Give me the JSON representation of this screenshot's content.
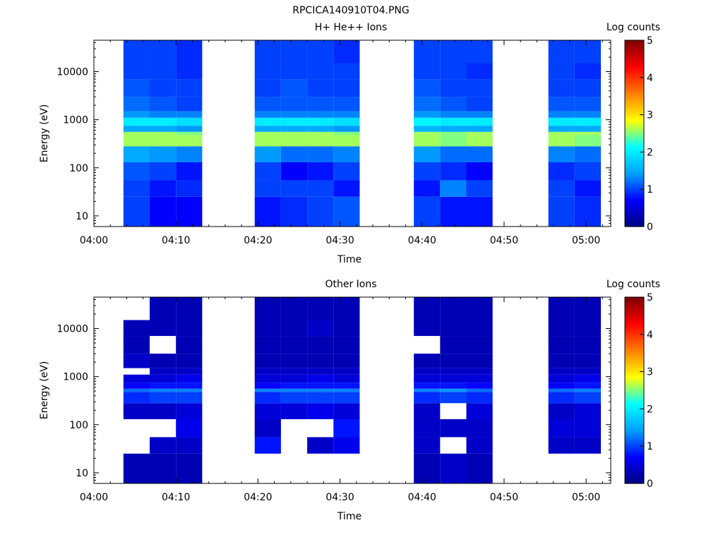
{
  "figure_title": "RPCICA140910T04.PNG",
  "colorscale": {
    "stops": [
      "#000080",
      "#0000ff",
      "#00a0ff",
      "#00ffff",
      "#ffff00",
      "#ff8000",
      "#ff0000",
      "#800000"
    ]
  },
  "chart_data": [
    {
      "type": "heatmap",
      "title": "H+ He++ Ions",
      "xlabel": "Time",
      "ylabel": "Energy (eV)",
      "yscale": "log",
      "ylim": [
        6,
        45000
      ],
      "xlim": [
        "04:00",
        "05:03"
      ],
      "x_ticks": [
        "04:00",
        "04:10",
        "04:20",
        "04:30",
        "04:40",
        "04:50",
        "05:00"
      ],
      "y_ticks": [
        "10",
        "100",
        "1000",
        "10000"
      ],
      "colorbar": {
        "label": "Log counts",
        "ticks": [
          "0",
          "1",
          "2",
          "3",
          "4",
          "5"
        ],
        "range": [
          0,
          5
        ]
      },
      "time_columns": [
        [
          "04:03.6",
          "04:06.8"
        ],
        [
          "04:06.8",
          "04:10.0"
        ],
        [
          "04:10.0",
          "04:13.2"
        ],
        [
          "04:19.6",
          "04:22.8"
        ],
        [
          "04:22.8",
          "04:26.0"
        ],
        [
          "04:26.0",
          "04:29.2"
        ],
        [
          "04:29.2",
          "04:32.4"
        ],
        [
          "04:39.0",
          "04:42.2"
        ],
        [
          "04:42.2",
          "04:45.4"
        ],
        [
          "04:45.4",
          "04:48.6"
        ],
        [
          "04:55.4",
          "04:58.6"
        ],
        [
          "04:58.6",
          "05:01.8"
        ]
      ],
      "energy_bins_eV": [
        6,
        25,
        55,
        130,
        280,
        480,
        560,
        750,
        1100,
        1500,
        3000,
        7000,
        15000,
        45000
      ],
      "values": [
        [
          1.0,
          1.0,
          1.1,
          1.5,
          2.6,
          2.6,
          1.5,
          2.0,
          1.4,
          1.2,
          1.1,
          1.0,
          1.0
        ],
        [
          0.7,
          0.8,
          1.0,
          1.4,
          2.6,
          2.6,
          1.5,
          2.0,
          1.3,
          1.1,
          1.0,
          1.0,
          1.0
        ],
        [
          0.7,
          0.9,
          0.8,
          1.3,
          2.6,
          2.5,
          1.4,
          1.9,
          1.3,
          1.0,
          1.0,
          0.9,
          0.9
        ],
        [
          0.8,
          1.0,
          1.0,
          1.4,
          2.6,
          2.6,
          1.5,
          2.0,
          1.3,
          1.1,
          1.0,
          1.0,
          1.0
        ],
        [
          0.9,
          1.0,
          0.7,
          1.2,
          2.6,
          2.6,
          1.5,
          2.0,
          1.3,
          1.1,
          1.1,
          1.0,
          1.0
        ],
        [
          1.0,
          1.0,
          0.8,
          1.2,
          2.6,
          2.6,
          1.5,
          2.0,
          1.3,
          1.1,
          1.0,
          1.0,
          1.0
        ],
        [
          1.1,
          0.8,
          1.0,
          1.3,
          2.6,
          2.5,
          1.4,
          1.9,
          1.3,
          1.1,
          1.0,
          1.0,
          0.9
        ],
        [
          1.0,
          0.8,
          1.0,
          1.4,
          2.6,
          2.6,
          1.6,
          2.1,
          1.4,
          1.2,
          1.1,
          1.0,
          1.0
        ],
        [
          0.8,
          1.3,
          0.9,
          1.2,
          2.5,
          2.5,
          1.5,
          2.0,
          1.3,
          1.1,
          1.0,
          1.0,
          1.0
        ],
        [
          0.8,
          1.0,
          0.7,
          1.2,
          2.6,
          2.6,
          1.5,
          2.0,
          1.3,
          1.0,
          1.0,
          0.9,
          1.0
        ],
        [
          1.0,
          1.0,
          0.9,
          1.3,
          2.6,
          2.6,
          1.5,
          2.0,
          1.3,
          1.1,
          1.0,
          1.0,
          1.0
        ],
        [
          0.9,
          0.8,
          1.0,
          1.2,
          2.5,
          2.6,
          1.5,
          2.0,
          1.3,
          1.1,
          1.0,
          0.9,
          1.0
        ]
      ]
    },
    {
      "type": "heatmap",
      "title": "Other Ions",
      "xlabel": "Time",
      "ylabel": "Energy (eV)",
      "yscale": "log",
      "ylim": [
        6,
        45000
      ],
      "xlim": [
        "04:00",
        "05:03"
      ],
      "x_ticks": [
        "04:00",
        "04:10",
        "04:20",
        "04:30",
        "04:40",
        "04:50",
        "05:00"
      ],
      "y_ticks": [
        "10",
        "100",
        "1000",
        "10000"
      ],
      "colorbar": {
        "label": "Log counts",
        "ticks": [
          "0",
          "1",
          "2",
          "3",
          "4",
          "5"
        ],
        "range": [
          0,
          5
        ]
      },
      "time_columns": [
        [
          "04:03.6",
          "04:06.8"
        ],
        [
          "04:06.8",
          "04:10.0"
        ],
        [
          "04:10.0",
          "04:13.2"
        ],
        [
          "04:19.6",
          "04:22.8"
        ],
        [
          "04:22.8",
          "04:26.0"
        ],
        [
          "04:26.0",
          "04:29.2"
        ],
        [
          "04:29.2",
          "04:32.4"
        ],
        [
          "04:39.0",
          "04:42.2"
        ],
        [
          "04:42.2",
          "04:45.4"
        ],
        [
          "04:45.4",
          "04:48.6"
        ],
        [
          "04:55.4",
          "04:58.6"
        ],
        [
          "04:58.6",
          "05:01.8"
        ]
      ],
      "energy_bins_eV": [
        6,
        25,
        55,
        130,
        280,
        480,
        560,
        750,
        1100,
        1500,
        3000,
        7000,
        15000,
        45000
      ],
      "values": [
        [
          0.3,
          null,
          null,
          0.4,
          0.9,
          1.2,
          0.7,
          0.5,
          null,
          0.4,
          0.3,
          0.3,
          null
        ],
        [
          0.3,
          0.4,
          null,
          0.4,
          1.0,
          1.3,
          0.8,
          0.5,
          0.4,
          0.3,
          null,
          0.3,
          0.3
        ],
        [
          0.3,
          0.4,
          0.6,
          0.5,
          1.0,
          1.3,
          0.8,
          0.6,
          0.4,
          0.3,
          0.3,
          0.3,
          0.3
        ],
        [
          null,
          0.8,
          0.4,
          0.5,
          0.9,
          1.3,
          0.7,
          0.5,
          0.4,
          0.3,
          0.3,
          0.3,
          0.3
        ],
        [
          null,
          null,
          null,
          0.5,
          1.0,
          1.3,
          0.8,
          0.5,
          0.4,
          0.3,
          0.3,
          0.3,
          0.3
        ],
        [
          null,
          0.4,
          null,
          0.6,
          1.0,
          1.3,
          0.8,
          0.6,
          0.4,
          0.3,
          0.3,
          0.4,
          0.3
        ],
        [
          null,
          0.6,
          0.8,
          0.5,
          1.0,
          1.3,
          0.8,
          0.5,
          0.4,
          0.3,
          0.3,
          0.3,
          0.3
        ],
        [
          0.3,
          0.4,
          0.4,
          0.4,
          0.9,
          1.3,
          0.8,
          0.5,
          0.4,
          0.3,
          null,
          0.3,
          0.3
        ],
        [
          0.4,
          null,
          0.4,
          null,
          1.0,
          1.4,
          0.8,
          0.5,
          0.4,
          0.3,
          0.3,
          0.3,
          0.3
        ],
        [
          0.3,
          0.4,
          0.4,
          0.5,
          0.9,
          1.2,
          0.7,
          0.5,
          0.4,
          0.3,
          0.3,
          0.3,
          0.3
        ],
        [
          null,
          0.4,
          0.5,
          0.4,
          0.9,
          1.2,
          0.7,
          0.5,
          0.4,
          0.3,
          0.3,
          0.3,
          0.3
        ],
        [
          null,
          0.4,
          0.5,
          0.5,
          1.0,
          1.3,
          0.8,
          0.6,
          0.4,
          0.3,
          0.3,
          0.3,
          0.3
        ]
      ]
    }
  ]
}
